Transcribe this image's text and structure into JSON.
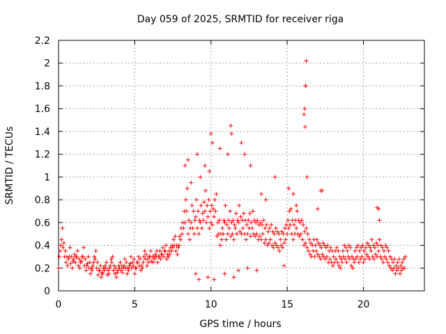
{
  "chart_data": {
    "type": "scatter",
    "title": "Day 059 of 2025, SRMTID for receiver riga",
    "xlabel": "GPS time / hours",
    "ylabel": "SRMTID / TECUs",
    "xlim": [
      0,
      24
    ],
    "ylim": [
      0,
      2.2
    ],
    "xticks": [
      0,
      5,
      10,
      15,
      20
    ],
    "xtick_labels": [
      "0",
      "5",
      "10",
      "15",
      "20"
    ],
    "yticks": [
      0,
      0.2,
      0.4,
      0.6,
      0.8,
      1.0,
      1.2,
      1.4,
      1.6,
      1.8,
      2.0,
      2.2
    ],
    "ytick_labels": [
      "0",
      "0.2",
      "0.4",
      "0.6",
      "0.8",
      "1",
      "1.2",
      "1.4",
      "1.6",
      "1.8",
      "2",
      "2.2"
    ],
    "grid": true,
    "marker": "+",
    "color": "#ff0000",
    "series": [
      {
        "name": "SRMTID",
        "x": [
          0.0,
          0.1,
          0.2,
          0.3,
          0.4,
          0.5,
          0.6,
          0.7,
          0.8,
          0.9,
          1.0,
          1.1,
          1.2,
          1.3,
          1.4,
          1.5,
          1.6,
          1.7,
          1.8,
          1.9,
          2.0,
          2.1,
          2.2,
          2.3,
          2.4,
          2.5,
          2.6,
          2.7,
          2.8,
          2.9,
          3.0,
          3.1,
          3.2,
          3.3,
          3.4,
          3.5,
          3.6,
          3.7,
          3.8,
          3.9,
          4.0,
          4.1,
          4.2,
          4.3,
          4.4,
          4.5,
          4.6,
          4.7,
          4.8,
          4.9,
          5.0,
          5.1,
          5.2,
          5.3,
          5.4,
          5.5,
          5.6,
          5.7,
          5.8,
          5.9,
          6.0,
          6.1,
          6.2,
          6.3,
          6.4,
          6.5,
          6.6,
          6.7,
          6.8,
          6.9,
          7.0,
          7.1,
          7.2,
          7.3,
          7.4,
          7.5,
          7.6,
          7.7,
          7.8,
          7.9,
          8.0,
          8.1,
          8.2,
          8.3,
          8.4,
          8.5,
          8.6,
          8.7,
          8.8,
          8.9,
          9.0,
          9.1,
          9.2,
          9.3,
          9.4,
          9.5,
          9.6,
          9.7,
          9.8,
          9.9,
          10.0,
          10.1,
          10.2,
          10.3,
          10.4,
          10.5,
          10.6,
          10.7,
          10.8,
          10.9,
          11.0,
          11.1,
          11.2,
          11.3,
          11.4,
          11.5,
          11.6,
          11.7,
          11.8,
          11.9,
          12.0,
          12.1,
          12.2,
          12.3,
          12.4,
          12.5,
          12.6,
          12.7,
          12.8,
          12.9,
          13.0,
          13.1,
          13.2,
          13.3,
          13.4,
          13.5,
          13.6,
          13.7,
          13.8,
          13.9,
          14.0,
          14.1,
          14.2,
          14.3,
          14.4,
          14.5,
          14.6,
          14.7,
          14.8,
          14.9,
          15.0,
          15.1,
          15.2,
          15.3,
          15.4,
          15.5,
          15.6,
          15.7,
          15.8,
          15.9,
          16.0,
          16.1,
          16.2,
          16.3,
          16.4,
          16.5,
          16.6,
          16.7,
          16.8,
          16.9,
          17.0,
          17.1,
          17.2,
          17.3,
          17.4,
          17.5,
          17.6,
          17.7,
          17.8,
          17.9,
          18.0,
          18.1,
          18.2,
          18.3,
          18.4,
          18.5,
          18.6,
          18.7,
          18.8,
          18.9,
          19.0,
          19.1,
          19.2,
          19.3,
          19.4,
          19.5,
          19.6,
          19.7,
          19.8,
          19.9,
          20.0,
          20.1,
          20.2,
          20.3,
          20.4,
          20.5,
          20.6,
          20.7,
          20.8,
          20.9,
          21.0,
          21.1,
          21.2,
          21.3,
          21.4,
          21.5,
          21.6,
          21.7,
          21.8,
          21.9,
          22.0,
          22.1,
          22.2,
          22.3,
          22.4,
          22.5,
          22.6,
          22.7,
          0.05,
          0.15,
          0.25,
          0.35,
          0.45,
          0.55,
          0.65,
          0.75,
          0.85,
          0.95,
          1.05,
          1.15,
          1.25,
          1.35,
          1.45,
          1.55,
          1.65,
          1.75,
          1.85,
          1.95,
          2.05,
          2.15,
          2.25,
          2.35,
          2.45,
          2.55,
          2.65,
          2.75,
          2.85,
          2.95,
          3.05,
          3.15,
          3.25,
          3.35,
          3.45,
          3.55,
          3.65,
          3.75,
          3.85,
          3.95,
          4.05,
          4.15,
          4.25,
          4.35,
          4.45,
          4.55,
          4.65,
          4.75,
          4.85,
          4.95,
          5.05,
          5.15,
          5.25,
          5.35,
          5.45,
          5.55,
          5.65,
          5.75,
          5.85,
          5.95,
          6.05,
          6.15,
          6.25,
          6.35,
          6.45,
          6.55,
          6.65,
          6.75,
          6.85,
          6.95,
          7.05,
          7.15,
          7.25,
          7.35,
          7.45,
          7.55,
          7.65,
          7.75,
          7.85,
          7.95,
          8.05,
          8.15,
          8.25,
          8.35,
          8.45,
          8.55,
          8.65,
          8.75,
          8.85,
          8.95,
          9.05,
          9.15,
          9.25,
          9.35,
          9.45,
          9.55,
          9.65,
          9.75,
          9.85,
          9.95,
          10.05,
          10.15,
          10.25,
          10.35,
          10.45,
          10.55,
          10.65,
          10.75,
          10.85,
          10.95,
          11.05,
          11.15,
          11.25,
          11.35,
          11.45,
          11.55,
          11.65,
          11.75,
          11.85,
          11.95,
          12.05,
          12.15,
          12.25,
          12.35,
          12.45,
          12.55,
          12.65,
          12.75,
          12.85,
          12.95,
          13.05,
          13.15,
          13.25,
          13.35,
          13.45,
          13.55,
          13.65,
          13.75,
          13.85,
          13.95,
          14.05,
          14.15,
          14.25,
          14.35,
          14.45,
          14.55,
          14.65,
          14.75,
          14.85,
          14.95,
          15.05,
          15.15,
          15.25,
          15.35,
          15.45,
          15.55,
          15.65,
          15.75,
          15.85,
          15.95,
          16.05,
          16.15,
          16.25,
          16.35,
          16.45,
          16.55,
          16.65,
          16.75,
          16.85,
          16.95,
          17.05,
          17.15,
          17.25,
          17.35,
          17.45,
          17.55,
          17.65,
          17.75,
          17.85,
          17.95,
          18.05,
          18.15,
          18.25,
          18.35,
          18.45,
          18.55,
          18.65,
          18.75,
          18.85,
          18.95,
          19.05,
          19.15,
          19.25,
          19.35,
          19.45,
          19.55,
          19.65,
          19.75,
          19.85,
          19.95,
          20.05,
          20.15,
          20.25,
          20.35,
          20.45,
          20.55,
          20.65,
          20.75,
          20.85,
          20.95,
          21.05,
          21.15,
          21.25,
          21.35,
          21.45,
          21.55,
          21.65,
          21.75,
          21.85,
          21.95,
          22.05,
          22.15,
          22.25,
          22.35,
          22.45,
          22.55,
          22.65,
          22.75,
          8.3,
          8.5,
          8.7,
          9.1,
          9.3,
          9.6,
          9.9,
          10.0,
          10.1,
          10.6,
          11.1,
          11.3,
          11.35,
          12.0,
          12.2,
          12.6,
          13.3,
          13.6,
          14.2,
          15.1,
          15.4,
          15.6,
          16.15,
          16.2,
          16.25,
          16.1,
          16.18,
          16.22,
          16.3,
          17.0,
          17.2,
          17.3,
          20.9,
          21.0,
          21.05,
          9.0,
          9.2,
          9.8,
          10.2,
          10.9,
          11.5,
          11.8,
          12.4,
          13.0,
          14.8
        ],
        "y": [
          0.2,
          0.35,
          0.45,
          0.38,
          0.3,
          0.25,
          0.22,
          0.3,
          0.24,
          0.2,
          0.28,
          0.25,
          0.3,
          0.22,
          0.2,
          0.26,
          0.3,
          0.22,
          0.18,
          0.24,
          0.2,
          0.15,
          0.18,
          0.25,
          0.28,
          0.2,
          0.14,
          0.18,
          0.12,
          0.15,
          0.18,
          0.2,
          0.14,
          0.15,
          0.22,
          0.25,
          0.18,
          0.15,
          0.12,
          0.18,
          0.2,
          0.18,
          0.16,
          0.22,
          0.2,
          0.15,
          0.18,
          0.24,
          0.2,
          0.22,
          0.15,
          0.2,
          0.25,
          0.22,
          0.18,
          0.2,
          0.3,
          0.28,
          0.22,
          0.25,
          0.3,
          0.26,
          0.25,
          0.28,
          0.3,
          0.25,
          0.3,
          0.28,
          0.32,
          0.3,
          0.35,
          0.28,
          0.3,
          0.32,
          0.35,
          0.38,
          0.4,
          0.35,
          0.32,
          0.4,
          0.45,
          0.5,
          0.55,
          0.6,
          0.7,
          0.5,
          0.45,
          0.6,
          0.55,
          0.5,
          0.65,
          0.55,
          0.5,
          0.6,
          0.55,
          0.62,
          0.7,
          0.6,
          0.65,
          0.55,
          0.6,
          0.58,
          0.65,
          0.7,
          0.48,
          0.5,
          0.4,
          0.45,
          0.5,
          0.6,
          0.45,
          0.5,
          0.55,
          0.48,
          0.5,
          0.45,
          0.55,
          0.5,
          0.6,
          0.52,
          0.5,
          0.55,
          0.5,
          0.45,
          0.5,
          0.55,
          0.48,
          0.55,
          0.5,
          0.48,
          0.5,
          0.45,
          0.48,
          0.45,
          0.5,
          0.42,
          0.45,
          0.4,
          0.42,
          0.45,
          0.4,
          0.38,
          0.42,
          0.4,
          0.38,
          0.35,
          0.4,
          0.38,
          0.42,
          0.45,
          0.5,
          0.55,
          0.58,
          0.5,
          0.45,
          0.5,
          0.55,
          0.5,
          0.48,
          0.5,
          0.45,
          0.4,
          0.42,
          0.38,
          0.35,
          0.32,
          0.3,
          0.35,
          0.3,
          0.35,
          0.32,
          0.3,
          0.28,
          0.32,
          0.3,
          0.28,
          0.3,
          0.25,
          0.28,
          0.25,
          0.22,
          0.25,
          0.28,
          0.25,
          0.22,
          0.2,
          0.25,
          0.3,
          0.28,
          0.25,
          0.3,
          0.28,
          0.22,
          0.2,
          0.25,
          0.28,
          0.3,
          0.25,
          0.28,
          0.3,
          0.25,
          0.28,
          0.32,
          0.3,
          0.28,
          0.35,
          0.3,
          0.28,
          0.32,
          0.3,
          0.35,
          0.3,
          0.28,
          0.25,
          0.3,
          0.28,
          0.25,
          0.22,
          0.2,
          0.18,
          0.2,
          0.15,
          0.18,
          0.2,
          0.15,
          0.18,
          0.2,
          0.2,
          0.3,
          0.4,
          0.55,
          0.42,
          0.35,
          0.3,
          0.28,
          0.38,
          0.3,
          0.26,
          0.32,
          0.3,
          0.35,
          0.28,
          0.25,
          0.3,
          0.38,
          0.28,
          0.22,
          0.3,
          0.25,
          0.2,
          0.22,
          0.3,
          0.35,
          0.25,
          0.18,
          0.22,
          0.16,
          0.2,
          0.22,
          0.25,
          0.18,
          0.2,
          0.28,
          0.3,
          0.22,
          0.2,
          0.16,
          0.22,
          0.25,
          0.22,
          0.2,
          0.28,
          0.25,
          0.2,
          0.22,
          0.3,
          0.25,
          0.28,
          0.2,
          0.25,
          0.3,
          0.28,
          0.22,
          0.25,
          0.35,
          0.32,
          0.28,
          0.3,
          0.35,
          0.3,
          0.3,
          0.32,
          0.35,
          0.3,
          0.35,
          0.32,
          0.38,
          0.35,
          0.4,
          0.32,
          0.35,
          0.38,
          0.4,
          0.45,
          0.48,
          0.4,
          0.38,
          0.48,
          0.55,
          0.6,
          0.7,
          0.8,
          0.9,
          0.62,
          0.55,
          0.75,
          0.7,
          0.62,
          0.8,
          0.7,
          0.62,
          0.75,
          0.68,
          0.78,
          0.88,
          0.75,
          0.8,
          0.7,
          0.75,
          0.72,
          0.8,
          0.85,
          0.6,
          0.62,
          0.5,
          0.55,
          0.62,
          0.75,
          0.58,
          0.62,
          0.7,
          0.6,
          0.62,
          0.58,
          0.68,
          0.62,
          0.75,
          0.65,
          0.62,
          0.68,
          0.62,
          0.58,
          0.62,
          0.68,
          0.6,
          0.7,
          0.62,
          0.6,
          0.62,
          0.58,
          0.6,
          0.58,
          0.62,
          0.55,
          0.58,
          0.52,
          0.55,
          0.58,
          0.52,
          0.5,
          0.55,
          0.52,
          0.5,
          0.45,
          0.52,
          0.5,
          0.55,
          0.58,
          0.62,
          0.7,
          0.72,
          0.62,
          0.58,
          0.62,
          0.7,
          0.62,
          0.6,
          0.62,
          0.58,
          0.52,
          0.55,
          0.5,
          0.45,
          0.42,
          0.4,
          0.45,
          0.4,
          0.45,
          0.42,
          0.4,
          0.38,
          0.42,
          0.4,
          0.38,
          0.4,
          0.35,
          0.38,
          0.35,
          0.3,
          0.35,
          0.38,
          0.35,
          0.3,
          0.28,
          0.35,
          0.4,
          0.38,
          0.35,
          0.4,
          0.38,
          0.3,
          0.28,
          0.35,
          0.38,
          0.4,
          0.35,
          0.38,
          0.4,
          0.35,
          0.38,
          0.42,
          0.4,
          0.38,
          0.45,
          0.4,
          0.38,
          0.42,
          0.4,
          0.45,
          0.4,
          0.38,
          0.35,
          0.4,
          0.38,
          0.35,
          0.3,
          0.28,
          0.25,
          0.28,
          0.22,
          0.25,
          0.28,
          0.22,
          0.25,
          0.28,
          0.3,
          1.1,
          1.15,
          0.95,
          1.2,
          1.0,
          1.1,
          1.05,
          1.38,
          1.3,
          1.25,
          1.2,
          1.45,
          1.38,
          1.3,
          1.2,
          1.1,
          0.85,
          0.8,
          1.0,
          0.9,
          0.85,
          0.75,
          1.6,
          1.8,
          2.02,
          1.55,
          1.44,
          1.8,
          1.0,
          0.72,
          0.88,
          0.88,
          0.73,
          0.72,
          0.62,
          0.15,
          0.1,
          0.12,
          0.1,
          0.15,
          0.12,
          0.18,
          0.2,
          0.18,
          0.22
        ]
      }
    ]
  }
}
